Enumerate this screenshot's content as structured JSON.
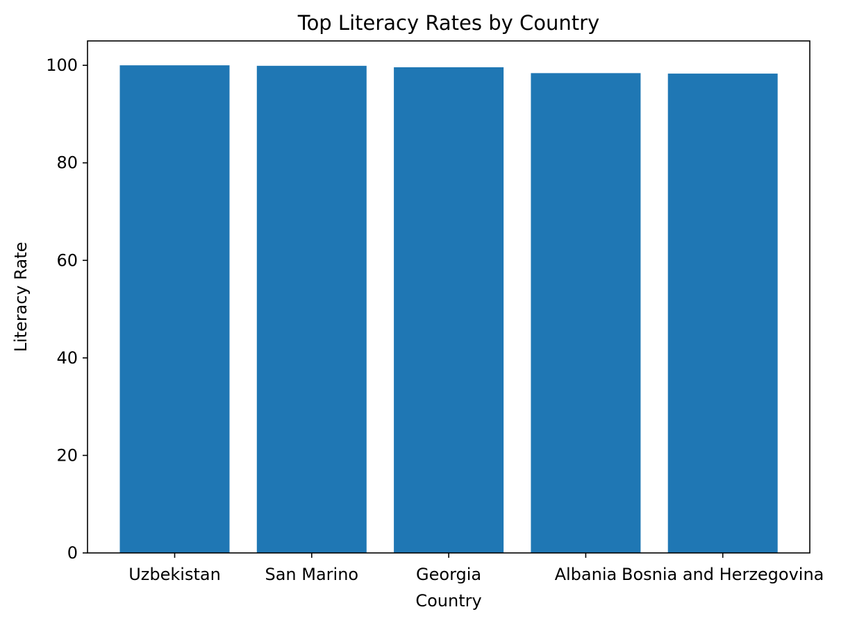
{
  "chart_data": {
    "type": "bar",
    "title": "Top Literacy Rates by Country",
    "xlabel": "Country",
    "ylabel": "Literacy Rate",
    "categories": [
      "Uzbekistan",
      "San Marino",
      "Georgia",
      "Albania",
      "Bosnia and Herzegovina"
    ],
    "values": [
      100.0,
      99.9,
      99.6,
      98.4,
      98.3
    ],
    "ylim": [
      0,
      105
    ],
    "yticks": [
      0,
      20,
      40,
      60,
      80,
      100
    ],
    "bar_color": "#1f77b4",
    "grid": false,
    "legend": "none"
  }
}
